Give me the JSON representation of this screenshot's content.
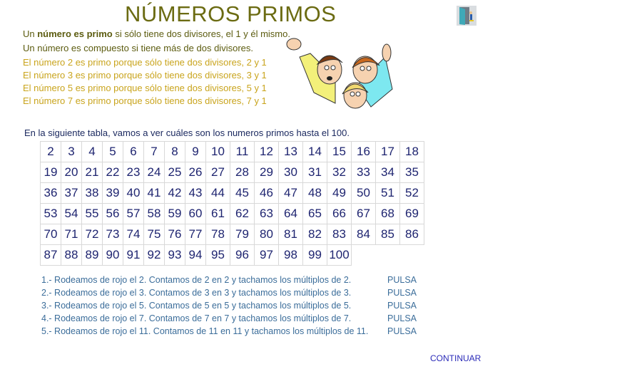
{
  "title": "NÚMEROS PRIMOS",
  "definition": {
    "prefix": "Un ",
    "bold": "número es primo",
    "suffix": " si sólo tiene dos divisores, el 1 y él mismo."
  },
  "composite": "Un número es compuesto si tiene más de dos divisores.",
  "examples": [
    "El número 2 es primo porque sólo tiene dos divisores, 2 y 1",
    "El número 3 es primo porque sólo tiene dos divisores, 3 y 1",
    "El número 5 es primo porque sólo tiene dos divisores, 5 y 1",
    "El número 7 es primo porque sólo tiene dos divisores, 7 y 1"
  ],
  "intro": "En la siguiente tabla, vamos a ver cuáles son los numeros primos hasta el 100.",
  "table": {
    "start": 2,
    "end": 100,
    "columns": 17
  },
  "steps": [
    {
      "text": "1.- Rodeamos de rojo el 2. Contamos de 2 en 2 y tachamos los múltiplos de 2.",
      "button": "PULSA"
    },
    {
      "text": "2.- Rodeamos de rojo el 3. Contamos de 3 en 3 y tachamos los múltiplos de 3.",
      "button": "PULSA"
    },
    {
      "text": "3.- Rodeamos de rojo el 5. Contamos de 5 en 5 y tachamos los múltiplos de 5.",
      "button": "PULSA"
    },
    {
      "text": "4.- Rodeamos de rojo el 7. Contamos de 7 en 7 y tachamos los múltiplos de 7.",
      "button": "PULSA"
    },
    {
      "text": "5.- Rodeamos de rojo el 11. Contamos de 11 en 11 y tachamos los múltiplos de 11.",
      "button": "PULSA"
    }
  ],
  "continue_label": "CONTINUAR",
  "icons": {
    "exit": "door-exit-icon"
  }
}
